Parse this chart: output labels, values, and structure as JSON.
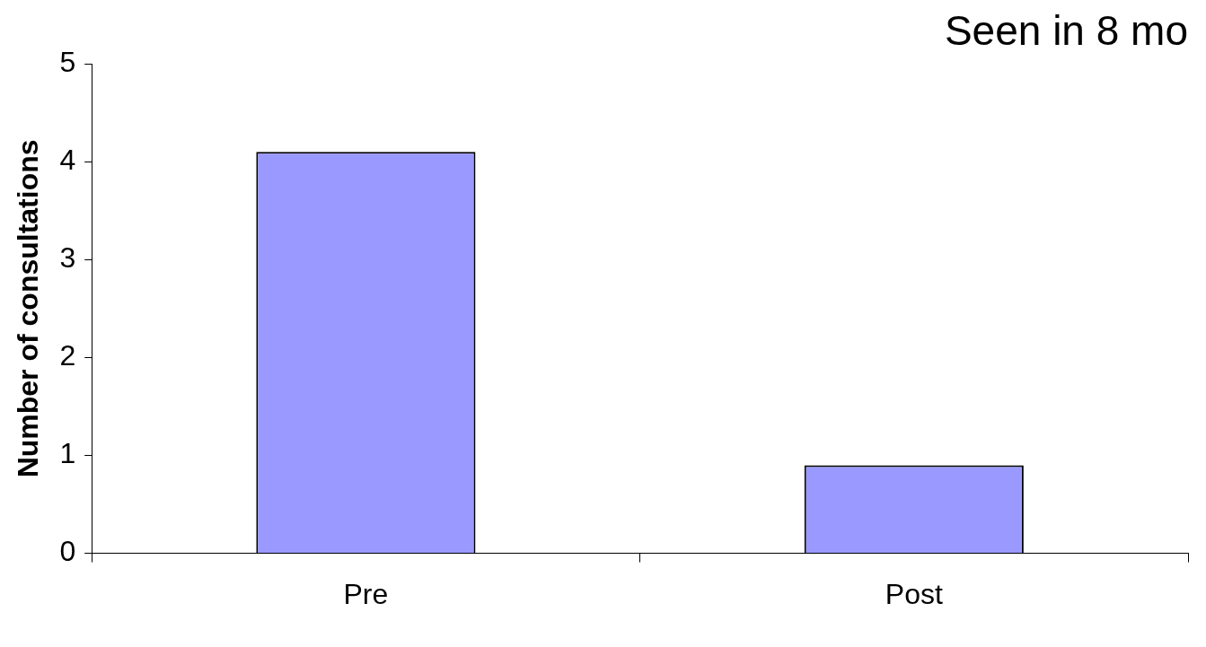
{
  "chart_data": {
    "type": "bar",
    "title": "Seen in 8 mo",
    "ylabel": "Number of consultations",
    "categories": [
      "Pre",
      "Post"
    ],
    "values": [
      4.1,
      0.9
    ],
    "color": "#9999ff",
    "ylim": [
      0,
      5
    ],
    "yticks": [
      0,
      1,
      2,
      3,
      4,
      5
    ]
  }
}
